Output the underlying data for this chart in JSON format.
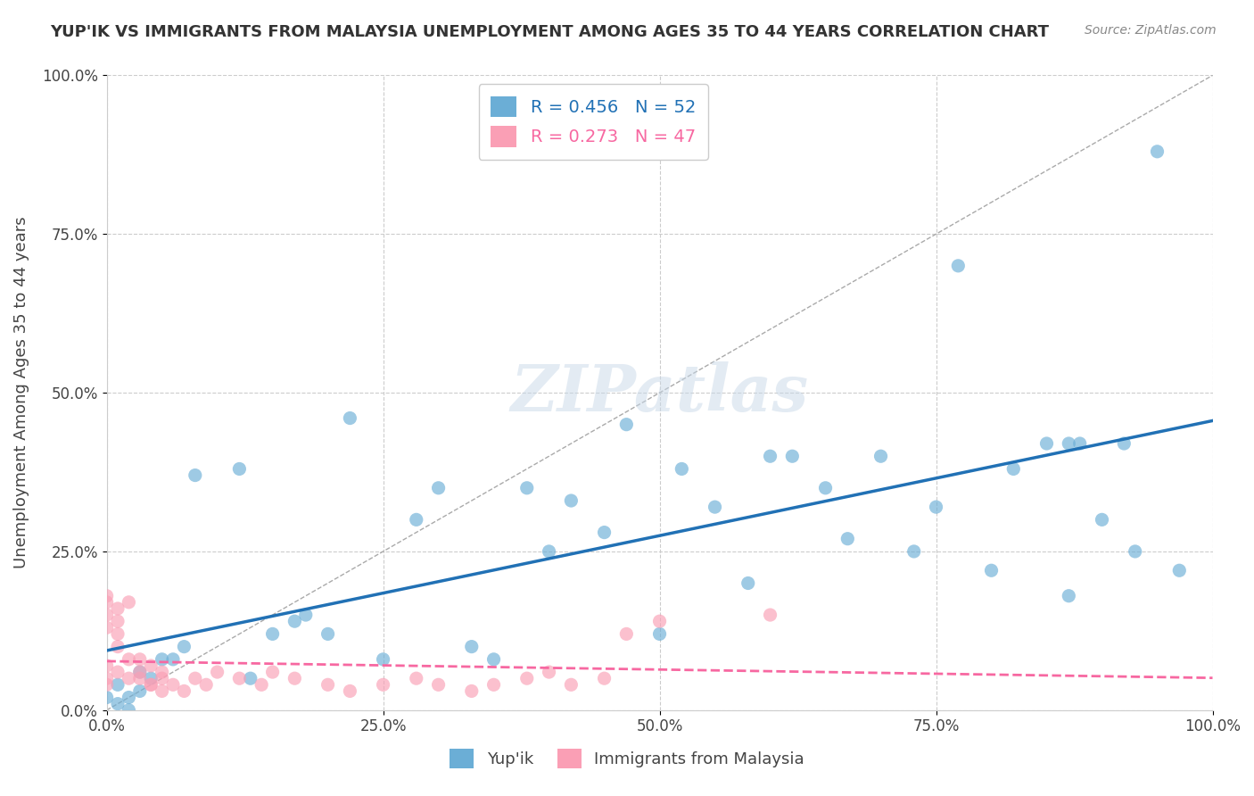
{
  "title": "YUP'IK VS IMMIGRANTS FROM MALAYSIA UNEMPLOYMENT AMONG AGES 35 TO 44 YEARS CORRELATION CHART",
  "source": "Source: ZipAtlas.com",
  "xlabel": "",
  "ylabel": "Unemployment Among Ages 35 to 44 years",
  "xlim": [
    0,
    1.0
  ],
  "ylim": [
    0,
    1.0
  ],
  "xticks": [
    0.0,
    0.25,
    0.5,
    0.75,
    1.0
  ],
  "yticks": [
    0.0,
    0.25,
    0.5,
    0.75,
    1.0
  ],
  "xticklabels": [
    "0.0%",
    "25.0%",
    "50.0%",
    "75.0%",
    "100.0%"
  ],
  "yticklabels": [
    "0.0%",
    "25.0%",
    "50.0%",
    "75.0%",
    "100.0%"
  ],
  "legend_labels": [
    "Yup'ik",
    "Immigrants from Malaysia"
  ],
  "R_blue": 0.456,
  "N_blue": 52,
  "R_pink": 0.273,
  "N_pink": 47,
  "blue_color": "#6baed6",
  "pink_color": "#fa9fb5",
  "blue_line_color": "#2171b5",
  "pink_line_color": "#f768a1",
  "watermark": "ZIPatlas",
  "watermark_color": "#c8d8e8",
  "background_color": "#ffffff",
  "grid_color": "#cccccc",
  "blue_scatter_x": [
    0.04,
    0.02,
    0.01,
    0.03,
    0.02,
    0.0,
    0.01,
    0.05,
    0.03,
    0.07,
    0.08,
    0.06,
    0.12,
    0.13,
    0.15,
    0.18,
    0.17,
    0.2,
    0.22,
    0.25,
    0.28,
    0.3,
    0.33,
    0.35,
    0.38,
    0.4,
    0.42,
    0.45,
    0.47,
    0.5,
    0.52,
    0.55,
    0.58,
    0.6,
    0.62,
    0.65,
    0.67,
    0.7,
    0.73,
    0.75,
    0.77,
    0.8,
    0.82,
    0.85,
    0.87,
    0.87,
    0.88,
    0.9,
    0.92,
    0.93,
    0.95,
    0.97
  ],
  "blue_scatter_y": [
    0.05,
    0.02,
    0.01,
    0.03,
    0.0,
    0.02,
    0.04,
    0.08,
    0.06,
    0.1,
    0.37,
    0.08,
    0.38,
    0.05,
    0.12,
    0.15,
    0.14,
    0.12,
    0.46,
    0.08,
    0.3,
    0.35,
    0.1,
    0.08,
    0.35,
    0.25,
    0.33,
    0.28,
    0.45,
    0.12,
    0.38,
    0.32,
    0.2,
    0.4,
    0.4,
    0.35,
    0.27,
    0.4,
    0.25,
    0.32,
    0.7,
    0.22,
    0.38,
    0.42,
    0.42,
    0.18,
    0.42,
    0.3,
    0.42,
    0.25,
    0.88,
    0.22
  ],
  "pink_scatter_x": [
    0.0,
    0.0,
    0.0,
    0.01,
    0.0,
    0.01,
    0.02,
    0.01,
    0.0,
    0.01,
    0.0,
    0.02,
    0.0,
    0.01,
    0.03,
    0.04,
    0.05,
    0.03,
    0.04,
    0.02,
    0.03,
    0.05,
    0.04,
    0.05,
    0.06,
    0.07,
    0.08,
    0.09,
    0.1,
    0.12,
    0.14,
    0.15,
    0.17,
    0.2,
    0.22,
    0.25,
    0.28,
    0.3,
    0.33,
    0.35,
    0.38,
    0.4,
    0.42,
    0.45,
    0.47,
    0.5,
    0.6
  ],
  "pink_scatter_y": [
    0.17,
    0.15,
    0.18,
    0.16,
    0.13,
    0.14,
    0.17,
    0.12,
    0.05,
    0.1,
    0.07,
    0.08,
    0.04,
    0.06,
    0.05,
    0.07,
    0.06,
    0.08,
    0.04,
    0.05,
    0.06,
    0.03,
    0.04,
    0.05,
    0.04,
    0.03,
    0.05,
    0.04,
    0.06,
    0.05,
    0.04,
    0.06,
    0.05,
    0.04,
    0.03,
    0.04,
    0.05,
    0.04,
    0.03,
    0.04,
    0.05,
    0.06,
    0.04,
    0.05,
    0.12,
    0.14,
    0.15
  ]
}
